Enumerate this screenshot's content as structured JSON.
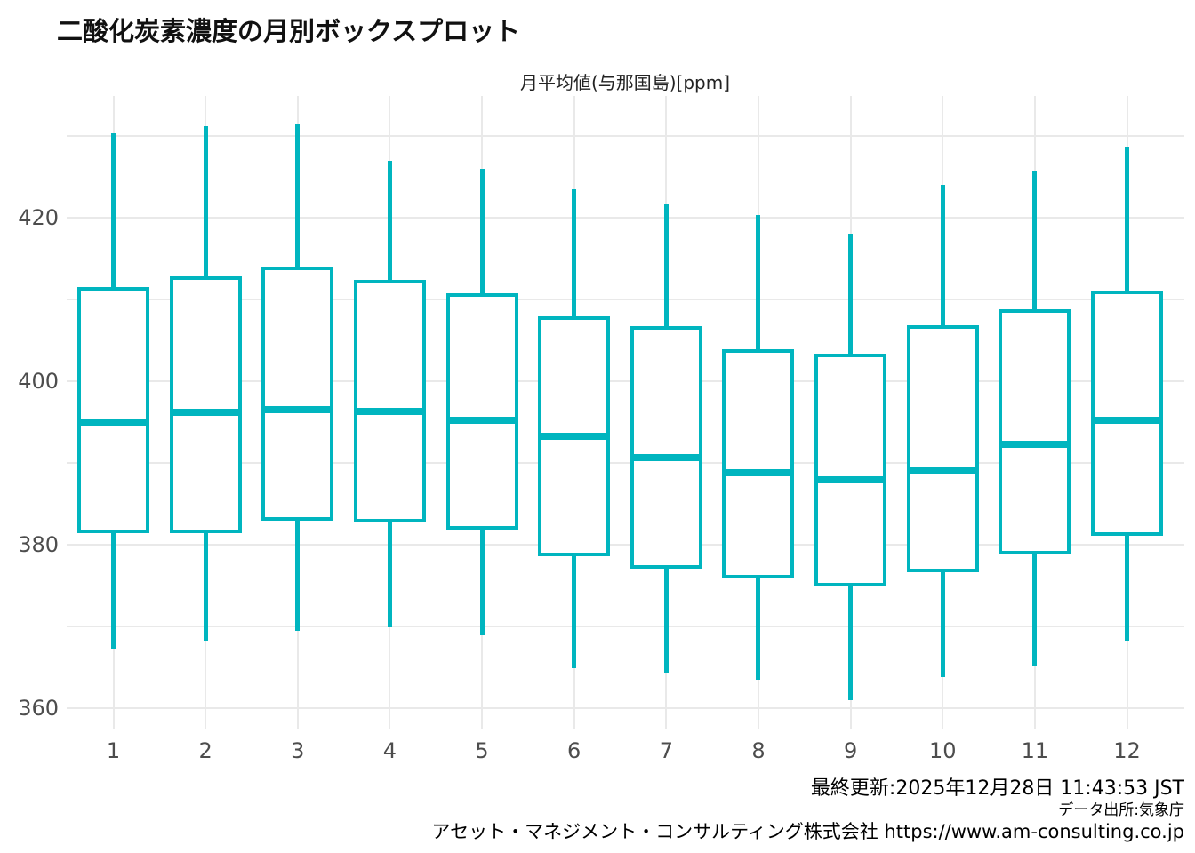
{
  "title": "二酸化炭素濃度の月別ボックスプロット",
  "subtitle": "月平均値(与那国島)[ppm]",
  "footer": {
    "updated": "最終更新:2025年12月28日 11:43:53 JST",
    "source": "データ出所:気象庁",
    "company": "アセット・マネジメント・コンサルティング株式会社",
    "url": "https://www.am-consulting.co.jp"
  },
  "colors": {
    "box": "#00b5bf",
    "grid": "#e9e9e9",
    "tick_label": "#4d4d4d",
    "text": "#000000",
    "background": "#ffffff"
  },
  "chart_data": {
    "type": "boxplot",
    "title": "二酸化炭素濃度の月別ボックスプロット",
    "subtitle": "月平均値(与那国島)[ppm]",
    "xlabel": "",
    "ylabel": "ppm",
    "categories": [
      1,
      2,
      3,
      4,
      5,
      6,
      7,
      8,
      9,
      10,
      11,
      12
    ],
    "yticks": [
      360,
      380,
      400,
      420
    ],
    "gridlines": [
      360,
      370,
      380,
      390,
      400,
      410,
      420,
      430
    ],
    "ylim": [
      356,
      435
    ],
    "grid": "on",
    "legend": "none",
    "series": [
      {
        "month": 1,
        "low": 367.3,
        "q1": 381.6,
        "median": 395.0,
        "q3": 411.3,
        "high": 430.3
      },
      {
        "month": 2,
        "low": 368.2,
        "q1": 381.6,
        "median": 396.2,
        "q3": 412.6,
        "high": 431.2
      },
      {
        "month": 3,
        "low": 369.4,
        "q1": 383.1,
        "median": 396.5,
        "q3": 413.8,
        "high": 431.5
      },
      {
        "month": 4,
        "low": 369.9,
        "q1": 382.9,
        "median": 396.3,
        "q3": 412.1,
        "high": 426.9
      },
      {
        "month": 5,
        "low": 368.9,
        "q1": 382.0,
        "median": 395.2,
        "q3": 410.5,
        "high": 425.9
      },
      {
        "month": 6,
        "low": 364.9,
        "q1": 378.8,
        "median": 393.2,
        "q3": 407.7,
        "high": 423.4
      },
      {
        "month": 7,
        "low": 364.3,
        "q1": 377.3,
        "median": 390.6,
        "q3": 406.5,
        "high": 421.6
      },
      {
        "month": 8,
        "low": 363.5,
        "q1": 376.1,
        "median": 388.8,
        "q3": 403.7,
        "high": 420.3
      },
      {
        "month": 9,
        "low": 361.0,
        "q1": 375.1,
        "median": 387.9,
        "q3": 403.1,
        "high": 418.0
      },
      {
        "month": 10,
        "low": 363.8,
        "q1": 376.8,
        "median": 389.0,
        "q3": 406.6,
        "high": 424.0
      },
      {
        "month": 11,
        "low": 365.2,
        "q1": 379.0,
        "median": 392.3,
        "q3": 408.6,
        "high": 425.7
      },
      {
        "month": 12,
        "low": 368.2,
        "q1": 381.3,
        "median": 395.2,
        "q3": 410.8,
        "high": 428.5
      }
    ]
  }
}
